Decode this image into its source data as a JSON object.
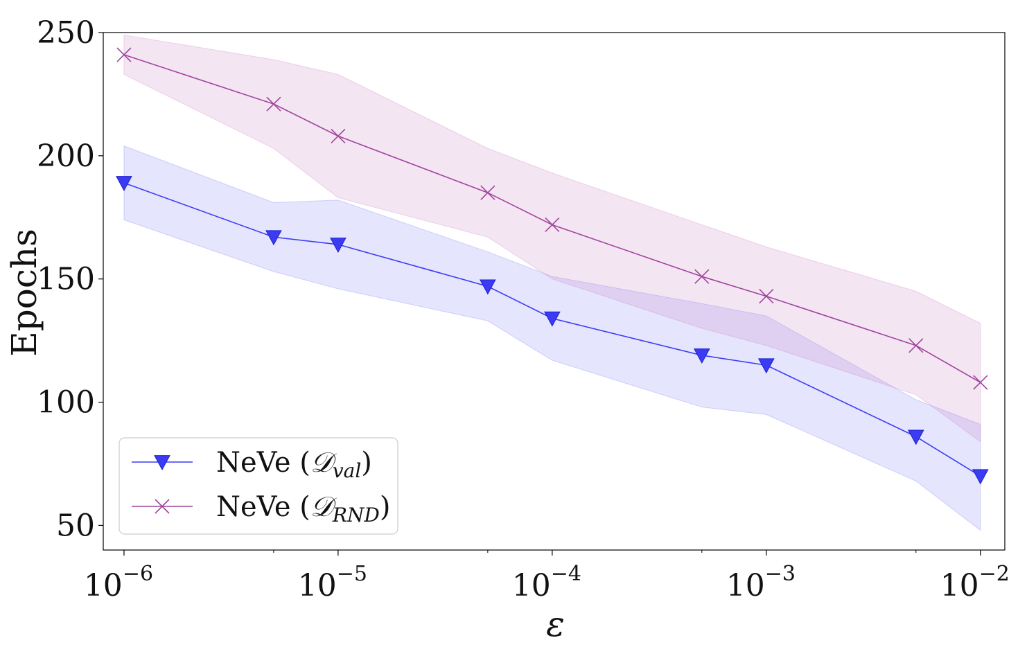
{
  "chart_data": {
    "type": "line",
    "title": "",
    "xlabel": "ε",
    "ylabel": "Epochs",
    "xscale": "log",
    "xlim": [
      8e-07,
      0.013
    ],
    "ylim": [
      40,
      250
    ],
    "grid": false,
    "legend_location": "lower-left",
    "x_ticks": [
      {
        "value": 1e-06,
        "base": "10",
        "exp": "−6"
      },
      {
        "value": 1e-05,
        "base": "10",
        "exp": "−5"
      },
      {
        "value": 0.0001,
        "base": "10",
        "exp": "−4"
      },
      {
        "value": 0.001,
        "base": "10",
        "exp": "−3"
      },
      {
        "value": 0.01,
        "base": "10",
        "exp": "−2"
      }
    ],
    "x_minor_ticks": [
      5e-06,
      5e-05,
      0.0005,
      0.005
    ],
    "y_ticks": [
      50,
      100,
      150,
      200,
      250
    ],
    "x": [
      1e-06,
      5e-06,
      1e-05,
      5e-05,
      0.0001,
      0.0005,
      0.001,
      0.005,
      0.01
    ],
    "series": [
      {
        "name": "NeVe (𝒟val)",
        "legend_main": "NeVe (",
        "legend_script": "𝒟",
        "legend_sub": "val",
        "legend_close": ")",
        "marker": "triangle-down",
        "color": "#3b3bf5",
        "band_color": "#7b7bf7",
        "values": [
          189,
          167,
          164,
          147,
          134,
          119,
          115,
          86,
          70
        ],
        "lower": [
          174,
          153,
          146,
          133,
          117,
          98,
          95,
          68,
          48
        ],
        "upper": [
          204,
          181,
          182,
          161,
          151,
          140,
          135,
          101,
          91
        ]
      },
      {
        "name": "NeVe (𝒟RND)",
        "legend_main": "NeVe (",
        "legend_script": "𝒟",
        "legend_sub": "RND",
        "legend_close": ")",
        "marker": "x",
        "color": "#a0449c",
        "band_color": "#c97fc4",
        "values": [
          241,
          221,
          208,
          185,
          172,
          151,
          143,
          123,
          108
        ],
        "lower": [
          233,
          203,
          183,
          167,
          150,
          130,
          123,
          103,
          84
        ],
        "upper": [
          249,
          239,
          233,
          203,
          193,
          172,
          163,
          145,
          132
        ]
      }
    ]
  }
}
